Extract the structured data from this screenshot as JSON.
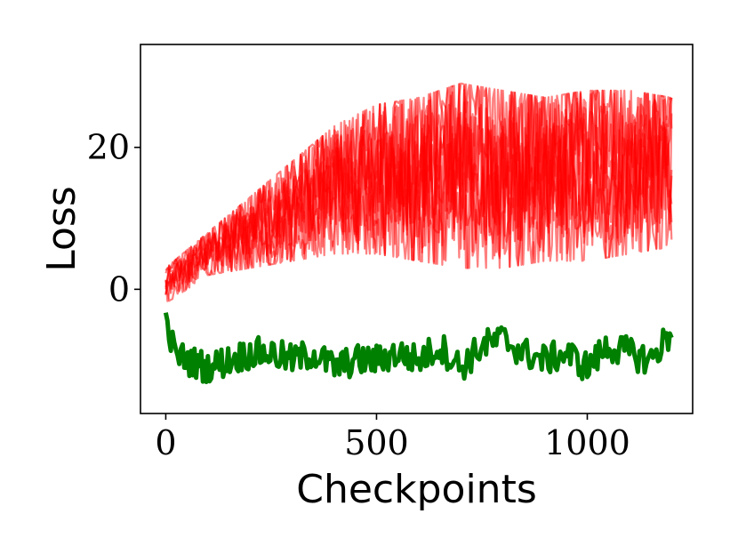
{
  "chart_data": {
    "type": "line",
    "title": "",
    "xlabel": "Checkpoints",
    "ylabel": "Loss",
    "xlim": [
      -60,
      1250
    ],
    "ylim": [
      -17.5,
      34.5
    ],
    "xticks": [
      0,
      500,
      1000
    ],
    "xtick_labels": [
      "0",
      "500",
      "1000"
    ],
    "yticks": [
      0,
      20
    ],
    "ytick_labels": [
      "0",
      "20"
    ],
    "grid": false,
    "legend": "none",
    "colors": {
      "red_series": "#ff0000",
      "green_series": "#008000"
    },
    "red_series_count": 10,
    "red_series_alpha": 0.5,
    "red_envelope": {
      "x": [
        0,
        100,
        200,
        300,
        400,
        500,
        600,
        700,
        800,
        900,
        1000,
        1100,
        1200
      ],
      "y_min": [
        -2,
        2,
        3,
        4,
        5,
        5,
        4,
        3,
        3,
        4,
        4,
        5,
        6
      ],
      "y_max": [
        3,
        8,
        13,
        18,
        23,
        26,
        27,
        29,
        28,
        27,
        28,
        28,
        27
      ]
    },
    "green_series": {
      "x": [
        0,
        20,
        50,
        100,
        150,
        200,
        250,
        300,
        350,
        400,
        450,
        500,
        550,
        600,
        650,
        700,
        750,
        800,
        850,
        900,
        950,
        1000,
        1050,
        1100,
        1150,
        1200
      ],
      "y": [
        -4,
        -9,
        -10,
        -11,
        -10,
        -9,
        -9,
        -10,
        -9,
        -11,
        -10,
        -10,
        -9,
        -10,
        -8,
        -11,
        -8,
        -7,
        -9,
        -10,
        -9,
        -11,
        -8,
        -9,
        -10,
        -6
      ]
    }
  }
}
